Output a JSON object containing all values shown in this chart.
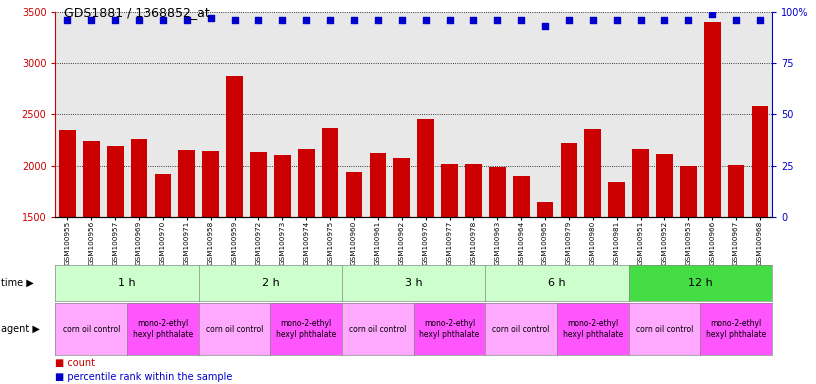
{
  "title": "GDS1881 / 1368852_at",
  "samples": [
    "GSM100955",
    "GSM100956",
    "GSM100957",
    "GSM100969",
    "GSM100970",
    "GSM100971",
    "GSM100958",
    "GSM100959",
    "GSM100972",
    "GSM100973",
    "GSM100974",
    "GSM100975",
    "GSM100960",
    "GSM100961",
    "GSM100962",
    "GSM100976",
    "GSM100977",
    "GSM100978",
    "GSM100963",
    "GSM100964",
    "GSM100965",
    "GSM100979",
    "GSM100980",
    "GSM100981",
    "GSM100951",
    "GSM100952",
    "GSM100953",
    "GSM100966",
    "GSM100967",
    "GSM100968"
  ],
  "counts": [
    2350,
    2240,
    2190,
    2255,
    1920,
    2150,
    2140,
    2870,
    2130,
    2100,
    2160,
    2370,
    1940,
    2120,
    2075,
    2450,
    2020,
    2020,
    1990,
    1900,
    1650,
    2220,
    2360,
    1840,
    2160,
    2110,
    2000,
    3400,
    2010,
    2580
  ],
  "percentiles": [
    96,
    96,
    96,
    96,
    96,
    96,
    97,
    96,
    96,
    96,
    96,
    96,
    96,
    96,
    96,
    96,
    96,
    96,
    96,
    96,
    93,
    96,
    96,
    96,
    96,
    96,
    96,
    99,
    96,
    96
  ],
  "ylim_left": [
    1500,
    3500
  ],
  "ylim_right": [
    0,
    100
  ],
  "bar_color": "#cc0000",
  "dot_color": "#0000cc",
  "bg_color": "#ffffff",
  "plot_bg": "#e8e8e8",
  "time_groups": [
    {
      "label": "1 h",
      "start": 0,
      "end": 6,
      "color": "#ccffcc"
    },
    {
      "label": "2 h",
      "start": 6,
      "end": 12,
      "color": "#ccffcc"
    },
    {
      "label": "3 h",
      "start": 12,
      "end": 18,
      "color": "#ccffcc"
    },
    {
      "label": "6 h",
      "start": 18,
      "end": 24,
      "color": "#ccffcc"
    },
    {
      "label": "12 h",
      "start": 24,
      "end": 30,
      "color": "#44dd44"
    }
  ],
  "agent_groups": [
    {
      "label": "corn oil control",
      "start": 0,
      "end": 3,
      "color": "#ffaaff"
    },
    {
      "label": "mono-2-ethyl\nhexyl phthalate",
      "start": 3,
      "end": 6,
      "color": "#ff55ff"
    },
    {
      "label": "corn oil control",
      "start": 6,
      "end": 9,
      "color": "#ffaaff"
    },
    {
      "label": "mono-2-ethyl\nhexyl phthalate",
      "start": 9,
      "end": 12,
      "color": "#ff55ff"
    },
    {
      "label": "corn oil control",
      "start": 12,
      "end": 15,
      "color": "#ffaaff"
    },
    {
      "label": "mono-2-ethyl\nhexyl phthalate",
      "start": 15,
      "end": 18,
      "color": "#ff55ff"
    },
    {
      "label": "corn oil control",
      "start": 18,
      "end": 21,
      "color": "#ffaaff"
    },
    {
      "label": "mono-2-ethyl\nhexyl phthalate",
      "start": 21,
      "end": 24,
      "color": "#ff55ff"
    },
    {
      "label": "corn oil control",
      "start": 24,
      "end": 27,
      "color": "#ffaaff"
    },
    {
      "label": "mono-2-ethyl\nhexyl phthalate",
      "start": 27,
      "end": 30,
      "color": "#ff55ff"
    }
  ],
  "legend_count_color": "#cc0000",
  "legend_pct_color": "#0000cc"
}
